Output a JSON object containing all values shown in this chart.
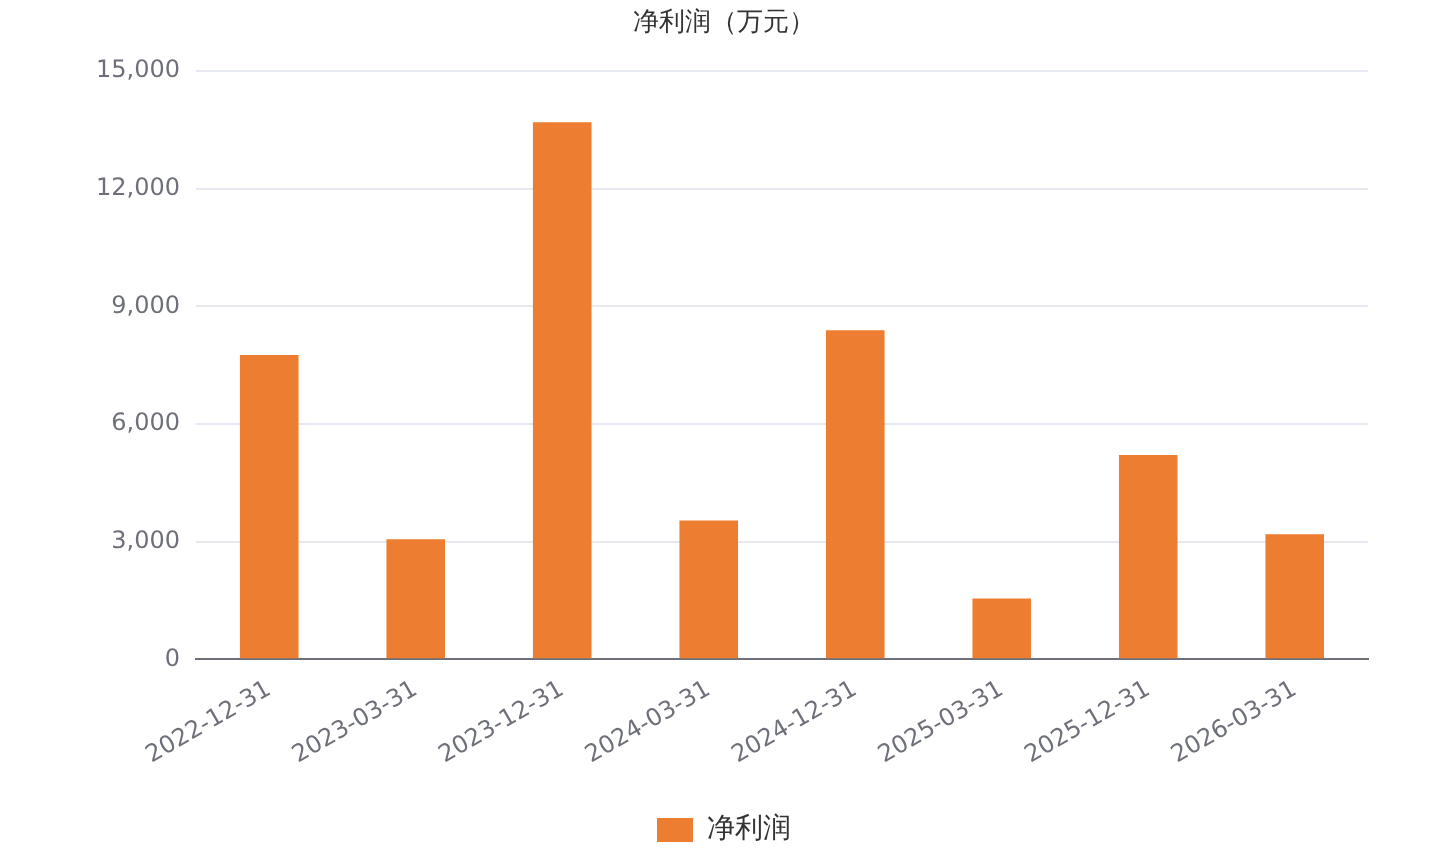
{
  "chart_data": {
    "type": "bar",
    "title": "净利润（万元）",
    "categories": [
      "2022-12-31",
      "2023-03-31",
      "2023-12-31",
      "2024-03-31",
      "2024-12-31",
      "2025-03-31",
      "2025-12-31",
      "2026-03-31"
    ],
    "series": [
      {
        "name": "净利润",
        "color": "#ed7d31",
        "values": [
          7760,
          3060,
          13700,
          3540,
          8390,
          1550,
          5210,
          3190
        ]
      }
    ],
    "ylim": [
      0,
      15000
    ],
    "yticks": [
      {
        "value": 0,
        "label": "0"
      },
      {
        "value": 3000,
        "label": "3,000"
      },
      {
        "value": 6000,
        "label": "6,000"
      },
      {
        "value": 9000,
        "label": "9,000"
      },
      {
        "value": 12000,
        "label": "12,000"
      },
      {
        "value": 15000,
        "label": "15,000"
      }
    ],
    "grid": "y",
    "legend": "bottom"
  }
}
